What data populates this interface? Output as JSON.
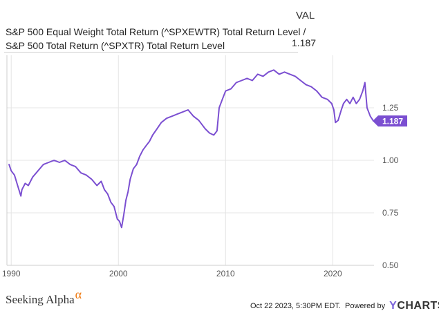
{
  "header": {
    "col_label": "VAL",
    "series_name_line1": "S&P 500 Equal Weight Total Return (^SPXEWTR) Total Return Level /",
    "series_name_line2": "S&P 500 Total Return (^SPXTR) Total Return Level",
    "series_value": "1.187"
  },
  "footer": {
    "brand": "Seeking Alpha",
    "brand_mark": "α",
    "timestamp": "Oct 22 2023, 5:30PM EDT.",
    "powered_by": "Powered by",
    "provider_y": "Y",
    "provider_rest": "CHARTS"
  },
  "colors": {
    "line": "#7b4fd1",
    "grid": "#e4e4e4",
    "axis_text": "#555555"
  },
  "chart_data": {
    "type": "line",
    "title": "",
    "xlabel": "",
    "ylabel": "",
    "xlim": [
      1989.6,
      2023.85
    ],
    "ylim": [
      0.5,
      1.5
    ],
    "x_ticks": [
      1990,
      2000,
      2010,
      2020
    ],
    "x_tick_labels": [
      "1990",
      "2000",
      "2010",
      "2020"
    ],
    "y_ticks": [
      0.5,
      0.75,
      1.0,
      1.25
    ],
    "y_tick_labels": [
      "0.50",
      "0.75",
      "1.00",
      "1.25"
    ],
    "last_value_label": "1.187",
    "series": [
      {
        "x": [
          1989.8,
          1990.0,
          1990.3,
          1990.6,
          1990.9,
          1991.0,
          1991.3,
          1991.6,
          1992.0,
          1992.5,
          1993.0,
          1993.5,
          1994.0,
          1994.5,
          1995.0,
          1995.5,
          1996.0,
          1996.5,
          1997.0,
          1997.5,
          1998.0,
          1998.4,
          1998.7,
          1999.0,
          1999.3,
          1999.6,
          1999.9,
          2000.1,
          2000.3,
          2000.5,
          2000.7,
          2000.9,
          2001.1,
          2001.4,
          2001.7,
          2002.0,
          2002.3,
          2002.6,
          2002.9,
          2003.2,
          2003.6,
          2004.0,
          2004.5,
          2005.0,
          2005.5,
          2006.0,
          2006.5,
          2007.0,
          2007.5,
          2007.8,
          2008.1,
          2008.5,
          2008.9,
          2009.2,
          2009.4,
          2009.7,
          2010.0,
          2010.5,
          2011.0,
          2011.5,
          2012.0,
          2012.5,
          2013.0,
          2013.5,
          2014.0,
          2014.5,
          2015.0,
          2015.5,
          2016.0,
          2016.5,
          2017.0,
          2017.5,
          2018.0,
          2018.5,
          2019.0,
          2019.5,
          2019.9,
          2020.1,
          2020.25,
          2020.5,
          2020.8,
          2021.0,
          2021.3,
          2021.6,
          2021.9,
          2022.2,
          2022.5,
          2022.8,
          2023.0,
          2023.2,
          2023.5,
          2023.8
        ],
        "y": [
          0.98,
          0.95,
          0.93,
          0.88,
          0.83,
          0.86,
          0.89,
          0.88,
          0.92,
          0.95,
          0.98,
          0.99,
          1.0,
          0.99,
          1.0,
          0.98,
          0.97,
          0.94,
          0.93,
          0.91,
          0.88,
          0.9,
          0.86,
          0.84,
          0.8,
          0.78,
          0.72,
          0.71,
          0.68,
          0.74,
          0.81,
          0.85,
          0.91,
          0.96,
          0.98,
          1.02,
          1.05,
          1.07,
          1.09,
          1.12,
          1.15,
          1.18,
          1.2,
          1.21,
          1.22,
          1.23,
          1.24,
          1.21,
          1.19,
          1.17,
          1.15,
          1.13,
          1.12,
          1.14,
          1.25,
          1.29,
          1.33,
          1.34,
          1.37,
          1.38,
          1.39,
          1.38,
          1.41,
          1.4,
          1.42,
          1.43,
          1.41,
          1.42,
          1.41,
          1.4,
          1.38,
          1.36,
          1.35,
          1.33,
          1.3,
          1.29,
          1.27,
          1.24,
          1.18,
          1.19,
          1.24,
          1.27,
          1.29,
          1.27,
          1.3,
          1.27,
          1.29,
          1.33,
          1.37,
          1.25,
          1.21,
          1.187
        ]
      }
    ]
  }
}
